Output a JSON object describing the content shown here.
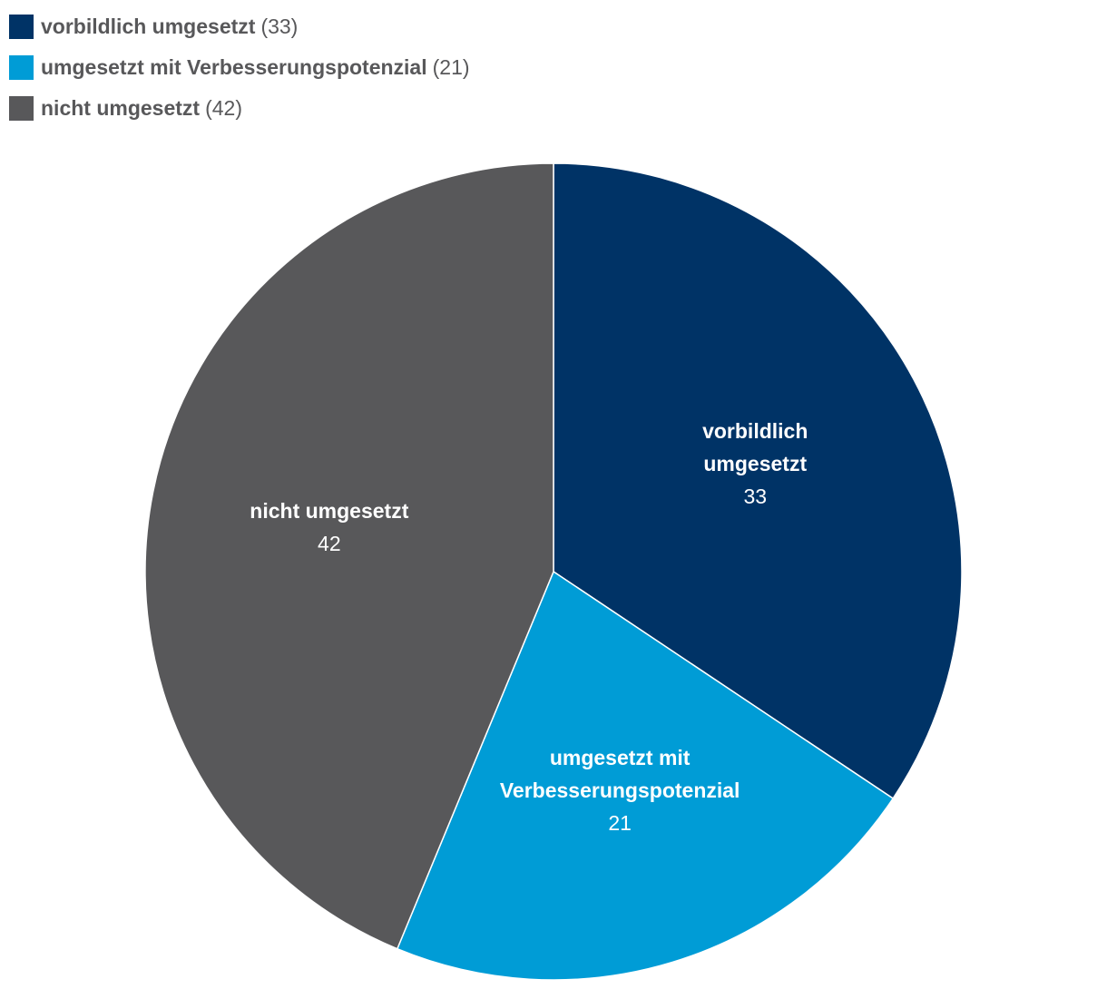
{
  "chart_data": {
    "type": "pie",
    "title": "",
    "series": [
      {
        "name": "vorbildlich umgesetzt",
        "value": 33,
        "color": "#003366",
        "legend_label": "vorbildlich umgesetzt",
        "legend_count": "(33)",
        "slice_label_lines": [
          "vorbildlich",
          "umgesetzt"
        ],
        "slice_value_label": "33"
      },
      {
        "name": "umgesetzt mit Verbesserungspotenzial",
        "value": 21,
        "color": "#009cd6",
        "legend_label": "umgesetzt mit Verbesserungspotenzial",
        "legend_count": "(21)",
        "slice_label_lines": [
          "umgesetzt mit",
          "Verbesserungspotenzial"
        ],
        "slice_value_label": "21"
      },
      {
        "name": "nicht umgesetzt",
        "value": 42,
        "color": "#58585a",
        "legend_label": "nicht umgesetzt",
        "legend_count": "(42)",
        "slice_label_lines": [
          "nicht umgesetzt"
        ],
        "slice_value_label": "42"
      }
    ],
    "legend": {
      "position": "top-left"
    },
    "start_angle": "12 o'clock",
    "direction": "clockwise"
  }
}
